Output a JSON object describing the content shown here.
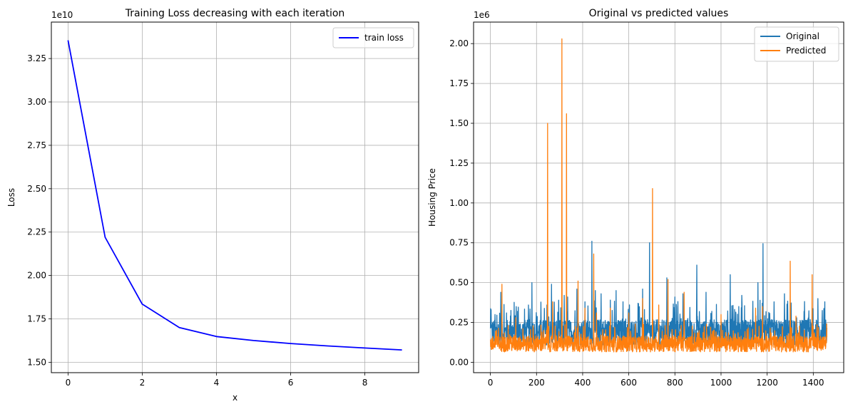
{
  "chart_data": [
    {
      "type": "line",
      "title": "Training Loss decreasing with each iteration",
      "xlabel": "x",
      "ylabel": "Loss",
      "y_offset_text": "1e10",
      "xlim": [
        -0.45,
        9.45
      ],
      "ylim": [
        1.44,
        3.46
      ],
      "xticks": [
        0,
        2,
        4,
        6,
        8
      ],
      "yticks": [
        1.5,
        1.75,
        2.0,
        2.25,
        2.5,
        2.75,
        3.0,
        3.25
      ],
      "ytick_labels": [
        "1.50",
        "1.75",
        "2.00",
        "2.25",
        "2.50",
        "2.75",
        "3.00",
        "3.25"
      ],
      "grid": true,
      "legend_position": "upper right",
      "series": [
        {
          "name": "train loss",
          "color": "#0000ff",
          "x": [
            0,
            1,
            2,
            3,
            4,
            5,
            6,
            7,
            8,
            9
          ],
          "values": [
            3.355,
            2.22,
            1.835,
            1.7,
            1.648,
            1.625,
            1.608,
            1.594,
            1.582,
            1.571
          ]
        }
      ]
    },
    {
      "type": "line",
      "title": "Original vs predicted values",
      "xlabel": "",
      "ylabel": "Housing Price",
      "y_offset_text": "1e6",
      "xlim": [
        -73,
        1532
      ],
      "ylim": [
        -0.065,
        2.135
      ],
      "xticks": [
        0,
        200,
        400,
        600,
        800,
        1000,
        1200,
        1400
      ],
      "yticks": [
        0.0,
        0.25,
        0.5,
        0.75,
        1.0,
        1.25,
        1.5,
        1.75,
        2.0
      ],
      "ytick_labels": [
        "0.00",
        "0.25",
        "0.50",
        "0.75",
        "1.00",
        "1.25",
        "1.50",
        "1.75",
        "2.00"
      ],
      "grid": true,
      "legend_position": "upper right",
      "n_points": 1460,
      "series": [
        {
          "name": "Original",
          "color": "#1f77b4",
          "noise_base": 0.18,
          "noise_amp": 0.16,
          "spikes": [
            [
              3,
              0.33
            ],
            [
              20,
              0.3
            ],
            [
              45,
              0.44
            ],
            [
              70,
              0.31
            ],
            [
              118,
              0.32
            ],
            [
              165,
              0.36
            ],
            [
              180,
              0.5
            ],
            [
              245,
              0.36
            ],
            [
              265,
              0.49
            ],
            [
              320,
              0.42
            ],
            [
              335,
              0.41
            ],
            [
              375,
              0.46
            ],
            [
              410,
              0.38
            ],
            [
              440,
              0.76
            ],
            [
              455,
              0.45
            ],
            [
              480,
              0.43
            ],
            [
              520,
              0.39
            ],
            [
              545,
              0.45
            ],
            [
              575,
              0.38
            ],
            [
              640,
              0.37
            ],
            [
              660,
              0.46
            ],
            [
              690,
              0.75
            ],
            [
              765,
              0.53
            ],
            [
              800,
              0.41
            ],
            [
              835,
              0.43
            ],
            [
              895,
              0.61
            ],
            [
              935,
              0.44
            ],
            [
              1040,
              0.55
            ],
            [
              1090,
              0.42
            ],
            [
              1160,
              0.5
            ],
            [
              1182,
              0.745
            ],
            [
              1230,
              0.38
            ],
            [
              1275,
              0.43
            ],
            [
              1360,
              0.32
            ],
            [
              1420,
              0.4
            ],
            [
              1450,
              0.38
            ]
          ]
        },
        {
          "name": "Predicted",
          "color": "#ff7f0e",
          "noise_base": 0.11,
          "noise_amp": 0.1,
          "spikes": [
            [
              50,
              0.49
            ],
            [
              110,
              0.28
            ],
            [
              248,
              1.5
            ],
            [
              270,
              0.38
            ],
            [
              310,
              2.03
            ],
            [
              330,
              1.56
            ],
            [
              380,
              0.51
            ],
            [
              410,
              0.34
            ],
            [
              448,
              0.68
            ],
            [
              460,
              0.31
            ],
            [
              520,
              0.34
            ],
            [
              600,
              0.31
            ],
            [
              660,
              0.4
            ],
            [
              703,
              1.09
            ],
            [
              730,
              0.36
            ],
            [
              770,
              0.52
            ],
            [
              840,
              0.44
            ],
            [
              1000,
              0.3
            ],
            [
              1150,
              0.34
            ],
            [
              1180,
              0.35
            ],
            [
              1300,
              0.635
            ],
            [
              1325,
              0.29
            ],
            [
              1395,
              0.55
            ]
          ]
        }
      ]
    }
  ]
}
